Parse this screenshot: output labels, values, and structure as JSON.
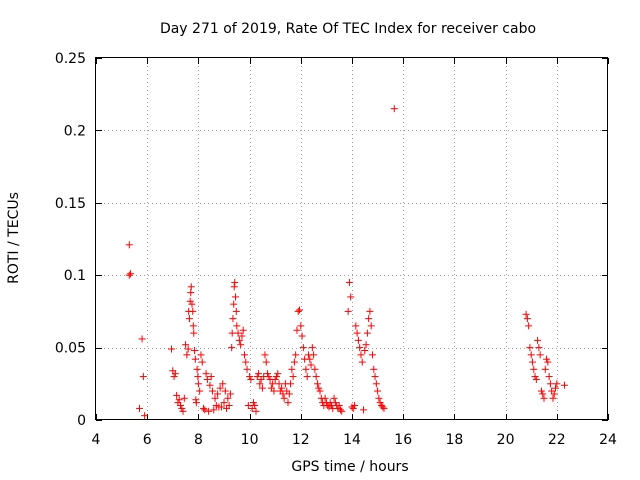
{
  "chart_data": {
    "type": "scatter",
    "title": "Day 271 of 2019, Rate Of TEC Index for receiver cabo",
    "xlabel": "GPS time / hours",
    "ylabel": "ROTI / TECUs",
    "xlim": [
      4,
      24
    ],
    "ylim": [
      0,
      0.25
    ],
    "xticks": [
      4,
      6,
      8,
      10,
      12,
      14,
      16,
      18,
      20,
      22,
      24
    ],
    "xtick_labels": [
      "4",
      "6",
      "8",
      "10",
      "12",
      "14",
      "16",
      "18",
      "20",
      "22",
      "24"
    ],
    "yticks": [
      0,
      0.05,
      0.1,
      0.15,
      0.2,
      0.25
    ],
    "ytick_labels": [
      "0",
      "0.05",
      "0.1",
      "0.15",
      "0.2",
      "0.25"
    ],
    "grid": true,
    "marker": "+",
    "marker_color": "#ff0000",
    "series": [
      {
        "name": "ROTI",
        "x": [
          5.3,
          5.3,
          5.35,
          5.8,
          5.85,
          5.7,
          5.9,
          6.95,
          7.0,
          7.05,
          7.1,
          7.15,
          7.2,
          7.25,
          7.3,
          7.35,
          7.4,
          7.45,
          7.5,
          7.55,
          7.6,
          7.62,
          7.65,
          7.68,
          7.7,
          7.72,
          7.75,
          7.78,
          7.8,
          7.82,
          7.85,
          7.88,
          7.9,
          7.92,
          7.95,
          7.98,
          8.0,
          8.05,
          8.1,
          8.15,
          8.2,
          8.25,
          8.3,
          8.35,
          8.4,
          8.45,
          8.5,
          8.55,
          8.6,
          8.65,
          8.7,
          8.75,
          8.8,
          8.85,
          8.9,
          8.95,
          9.0,
          9.05,
          9.1,
          9.15,
          9.2,
          9.25,
          9.3,
          9.32,
          9.35,
          9.38,
          9.4,
          9.42,
          9.45,
          9.48,
          9.5,
          9.55,
          9.6,
          9.65,
          9.7,
          9.75,
          9.8,
          9.85,
          9.9,
          9.95,
          10.0,
          10.05,
          10.1,
          10.15,
          10.2,
          10.25,
          10.3,
          10.35,
          10.4,
          10.45,
          10.5,
          10.55,
          10.6,
          10.65,
          10.7,
          10.75,
          10.8,
          10.85,
          10.9,
          10.95,
          11.0,
          11.05,
          11.1,
          11.15,
          11.2,
          11.25,
          11.3,
          11.35,
          11.4,
          11.45,
          11.5,
          11.55,
          11.6,
          11.65,
          11.7,
          11.75,
          11.8,
          11.85,
          11.9,
          11.95,
          12.0,
          12.05,
          12.1,
          12.15,
          12.2,
          12.25,
          12.3,
          12.35,
          12.4,
          12.45,
          12.5,
          12.55,
          12.6,
          12.65,
          12.7,
          12.75,
          12.8,
          12.85,
          12.9,
          12.95,
          13.0,
          13.05,
          13.1,
          13.15,
          13.2,
          13.25,
          13.3,
          13.35,
          13.4,
          13.45,
          13.5,
          13.55,
          13.6,
          13.85,
          13.9,
          13.95,
          14.0,
          14.05,
          14.1,
          14.15,
          14.2,
          14.25,
          14.3,
          14.35,
          14.4,
          14.45,
          14.5,
          14.55,
          14.6,
          14.65,
          14.7,
          14.75,
          14.8,
          14.85,
          14.9,
          14.95,
          15.0,
          15.05,
          15.1,
          15.15,
          15.2,
          15.25,
          15.65,
          20.8,
          20.85,
          20.9,
          20.95,
          21.0,
          21.05,
          21.1,
          21.15,
          21.2,
          21.25,
          21.3,
          21.35,
          21.4,
          21.45,
          21.5,
          21.55,
          21.6,
          21.65,
          21.7,
          21.75,
          21.8,
          21.85,
          21.9,
          21.95,
          22.0,
          22.3
        ],
        "y": [
          0.121,
          0.1,
          0.101,
          0.056,
          0.03,
          0.008,
          0.003,
          0.049,
          0.034,
          0.03,
          0.032,
          0.017,
          0.012,
          0.014,
          0.01,
          0.008,
          0.006,
          0.015,
          0.052,
          0.045,
          0.049,
          0.075,
          0.07,
          0.082,
          0.088,
          0.092,
          0.08,
          0.075,
          0.065,
          0.06,
          0.048,
          0.042,
          0.014,
          0.012,
          0.035,
          0.03,
          0.025,
          0.02,
          0.045,
          0.04,
          0.008,
          0.007,
          0.032,
          0.028,
          0.006,
          0.024,
          0.03,
          0.02,
          0.007,
          0.015,
          0.01,
          0.018,
          0.009,
          0.022,
          0.009,
          0.025,
          0.012,
          0.02,
          0.008,
          0.015,
          0.01,
          0.018,
          0.05,
          0.06,
          0.07,
          0.08,
          0.092,
          0.095,
          0.085,
          0.075,
          0.065,
          0.06,
          0.055,
          0.052,
          0.058,
          0.062,
          0.045,
          0.04,
          0.035,
          0.01,
          0.03,
          0.028,
          0.008,
          0.012,
          0.01,
          0.006,
          0.03,
          0.032,
          0.025,
          0.028,
          0.022,
          0.03,
          0.045,
          0.04,
          0.032,
          0.03,
          0.028,
          0.022,
          0.025,
          0.02,
          0.028,
          0.03,
          0.032,
          0.025,
          0.02,
          0.022,
          0.018,
          0.015,
          0.025,
          0.02,
          0.012,
          0.018,
          0.025,
          0.035,
          0.03,
          0.04,
          0.045,
          0.062,
          0.075,
          0.076,
          0.065,
          0.058,
          0.05,
          0.042,
          0.035,
          0.03,
          0.045,
          0.042,
          0.038,
          0.05,
          0.045,
          0.035,
          0.03,
          0.025,
          0.022,
          0.02,
          0.015,
          0.012,
          0.01,
          0.015,
          0.012,
          0.01,
          0.009,
          0.012,
          0.01,
          0.008,
          0.015,
          0.012,
          0.01,
          0.008,
          0.01,
          0.007,
          0.006,
          0.075,
          0.095,
          0.085,
          0.009,
          0.008,
          0.01,
          0.065,
          0.06,
          0.055,
          0.05,
          0.045,
          0.04,
          0.007,
          0.048,
          0.052,
          0.06,
          0.07,
          0.075,
          0.065,
          0.045,
          0.035,
          0.03,
          0.025,
          0.02,
          0.015,
          0.012,
          0.01,
          0.009,
          0.008,
          0.215,
          0.073,
          0.07,
          0.065,
          0.05,
          0.045,
          0.04,
          0.035,
          0.03,
          0.028,
          0.055,
          0.05,
          0.045,
          0.02,
          0.018,
          0.015,
          0.035,
          0.042,
          0.04,
          0.03,
          0.025,
          0.02,
          0.015,
          0.018,
          0.022,
          0.025,
          0.024
        ]
      }
    ]
  }
}
